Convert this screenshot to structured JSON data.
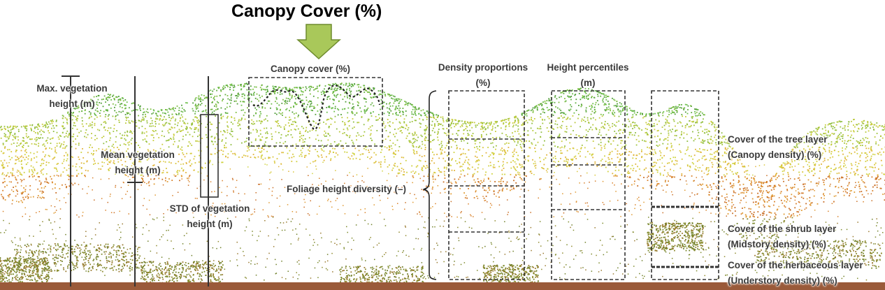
{
  "title": "Canopy Cover (%)",
  "labels": {
    "max_height": "Max. vegetation",
    "max_height_unit": "height (m)",
    "mean_height": "Mean vegetation",
    "mean_height_unit": "height (m)",
    "std_height": "STD of vegetation",
    "std_height_unit": "height (m)",
    "canopy_cover": "Canopy cover (%)",
    "foliage_diversity": "Foliage height diversity (–)",
    "density_props": "Density proportions",
    "density_props_unit": "(%)",
    "height_pct": "Height percentiles",
    "height_pct_unit": "(m)",
    "tree_layer": "Cover of the tree layer",
    "tree_layer_sub": "(Canopy density) (%)",
    "shrub_layer": "Cover of the shrub layer",
    "shrub_layer_sub": "(Midstory density) (%)",
    "herb_layer": "Cover of the herbaceous layer",
    "herb_layer_sub": "(Understory density) (%)"
  },
  "colors": {
    "arrow_fill": "#a9c85a",
    "arrow_stroke": "#6e8b2e",
    "ground": "#9a5a3a",
    "canopy_high": "#5fae3e",
    "canopy_mid": "#d4c83a",
    "lower_orange": "#d9822b",
    "shrub_olive": "#7d8a2c",
    "label_text": "#3a3a3a"
  }
}
